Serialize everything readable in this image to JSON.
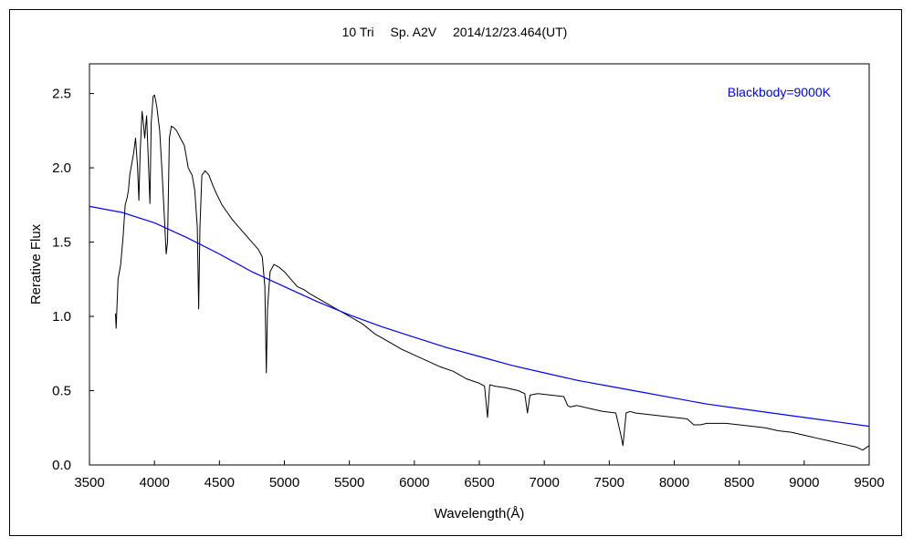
{
  "chart_data": {
    "type": "line",
    "title": "10 Tri　 Sp. A2V　 2014/12/23.464(UT)",
    "xlabel": "Wavelength(Å)",
    "ylabel": "Rerative Flux",
    "xlim": [
      3500,
      9500
    ],
    "ylim": [
      0.0,
      2.7
    ],
    "xticks": [
      "3500",
      "4000",
      "4500",
      "5000",
      "5500",
      "6000",
      "6500",
      "7000",
      "7500",
      "8000",
      "8500",
      "9000",
      "9500"
    ],
    "yticks": [
      "0.0",
      "0.5",
      "1.0",
      "1.5",
      "2.0",
      "2.5"
    ],
    "grid": false,
    "legend": "none",
    "annotations": [
      {
        "text": "Blackbody=9000K",
        "color": "#0000ff",
        "position": "top-right"
      }
    ],
    "series": [
      {
        "name": "",
        "color": "#000000",
        "x": [
          3700,
          3705,
          3720,
          3740,
          3760,
          3775,
          3790,
          3800,
          3810,
          3820,
          3840,
          3855,
          3870,
          3880,
          3890,
          3905,
          3915,
          3925,
          3940,
          3955,
          3965,
          3975,
          3990,
          4000,
          4010,
          4020,
          4040,
          4060,
          4080,
          4090,
          4101,
          4115,
          4130,
          4150,
          4170,
          4200,
          4230,
          4260,
          4290,
          4310,
          4330,
          4340,
          4350,
          4365,
          4390,
          4420,
          4450,
          4480,
          4520,
          4560,
          4600,
          4650,
          4700,
          4750,
          4800,
          4830,
          4850,
          4861,
          4870,
          4890,
          4920,
          4960,
          5000,
          5050,
          5100,
          5150,
          5200,
          5300,
          5400,
          5500,
          5600,
          5700,
          5800,
          5900,
          6000,
          6100,
          6200,
          6300,
          6400,
          6500,
          6540,
          6563,
          6580,
          6620,
          6700,
          6800,
          6850,
          6870,
          6890,
          6950,
          7050,
          7150,
          7180,
          7200,
          7250,
          7350,
          7450,
          7550,
          7590,
          7605,
          7630,
          7660,
          7700,
          7800,
          7900,
          8000,
          8100,
          8150,
          8200,
          8250,
          8300,
          8400,
          8500,
          8600,
          8700,
          8800,
          8900,
          9000,
          9100,
          9200,
          9300,
          9400,
          9450,
          9500
        ],
        "y": [
          1.02,
          0.92,
          1.25,
          1.35,
          1.55,
          1.75,
          1.8,
          1.85,
          1.95,
          2.0,
          2.1,
          2.2,
          2.0,
          1.78,
          2.1,
          2.38,
          2.3,
          2.2,
          2.35,
          2.0,
          1.76,
          2.3,
          2.48,
          2.49,
          2.45,
          2.4,
          2.25,
          1.95,
          1.6,
          1.42,
          1.5,
          2.2,
          2.28,
          2.27,
          2.25,
          2.2,
          2.15,
          2.0,
          1.95,
          1.85,
          1.6,
          1.05,
          1.6,
          1.95,
          1.98,
          1.95,
          1.88,
          1.82,
          1.75,
          1.7,
          1.65,
          1.6,
          1.55,
          1.5,
          1.45,
          1.4,
          1.2,
          0.62,
          1.05,
          1.3,
          1.35,
          1.33,
          1.3,
          1.25,
          1.2,
          1.18,
          1.15,
          1.1,
          1.05,
          1.0,
          0.95,
          0.88,
          0.83,
          0.78,
          0.74,
          0.7,
          0.66,
          0.63,
          0.58,
          0.55,
          0.53,
          0.32,
          0.54,
          0.53,
          0.52,
          0.5,
          0.48,
          0.35,
          0.47,
          0.48,
          0.47,
          0.46,
          0.4,
          0.39,
          0.4,
          0.38,
          0.36,
          0.35,
          0.2,
          0.13,
          0.35,
          0.36,
          0.35,
          0.34,
          0.33,
          0.32,
          0.31,
          0.27,
          0.27,
          0.28,
          0.28,
          0.28,
          0.27,
          0.26,
          0.25,
          0.23,
          0.22,
          0.2,
          0.18,
          0.16,
          0.14,
          0.12,
          0.1,
          0.13
        ]
      },
      {
        "name": "Blackbody=9000K",
        "color": "#0000ff",
        "x": [
          3500,
          3750,
          4000,
          4250,
          4500,
          4750,
          5000,
          5250,
          5500,
          5750,
          6000,
          6250,
          6500,
          6750,
          7000,
          7250,
          7500,
          7750,
          8000,
          8250,
          8500,
          8750,
          9000,
          9250,
          9500
        ],
        "y": [
          1.74,
          1.7,
          1.63,
          1.53,
          1.42,
          1.3,
          1.2,
          1.1,
          1.01,
          0.93,
          0.86,
          0.79,
          0.73,
          0.67,
          0.62,
          0.57,
          0.53,
          0.49,
          0.45,
          0.41,
          0.38,
          0.35,
          0.32,
          0.29,
          0.26
        ]
      }
    ]
  }
}
